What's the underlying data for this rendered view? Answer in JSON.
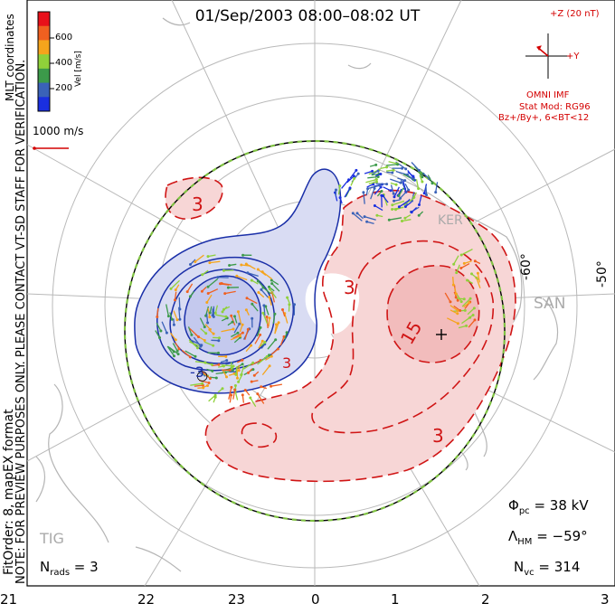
{
  "title": "01/Sep/2003 08:00–08:02 UT",
  "note_vertical": "NOTE: FOR PREVIEW PURPOSES ONLY. PLEASE CONTACT VT-SD STAFF FOR VERIFICATION.",
  "fitorder_vertical": "FitOrder: 8, mapEX format",
  "coords_vertical": "MLT coordinates",
  "colorbar": {
    "label": "Vel [m/s]",
    "ticks": [
      "600",
      "400",
      "200"
    ],
    "colors": [
      "#e8101a",
      "#f06020",
      "#f5a41c",
      "#8fd13a",
      "#3c9a4a",
      "#3a62b8",
      "#1a2fe0"
    ]
  },
  "scale_vector": {
    "label": "1000 m/s",
    "color": "#d40000"
  },
  "imf": {
    "z_label": "+Z (20 nT)",
    "y_label": "+Y",
    "omni": "OMNI IMF",
    "stat_mod": "Stat Mod: RG96",
    "cond": "Bz+/By+, 6<BT<12",
    "color": "#d40000"
  },
  "lat_labels": [
    "-60°",
    "-50°"
  ],
  "station_labels": [
    "SAN",
    "TIG",
    "KER"
  ],
  "contour_labels": [
    "3",
    "3",
    "15",
    "3",
    "3",
    "-3"
  ],
  "stats": {
    "phi_pc_label": "Φ",
    "phi_pc_sub": "pc",
    "phi_pc_value": " = 38 kV",
    "lambda_hm_label": "Λ",
    "lambda_hm_sub": "HM",
    "lambda_hm_value": " = −59°",
    "n_vc_label": "N",
    "n_vc_sub": "vc",
    "n_vc_value": " = 314",
    "n_rads_label": "N",
    "n_rads_sub": "rads",
    "n_rads_value": " = 3"
  },
  "mlt_axis": [
    "21",
    "22",
    "23",
    "0",
    "1",
    "2",
    "3"
  ],
  "colors": {
    "positive_contour": "#d01515",
    "negative_contour": "#1a2fa8",
    "positive_fill": "#f7d6d6",
    "negative_fill": "#d9dcf3",
    "hmb": "#7fc242"
  }
}
